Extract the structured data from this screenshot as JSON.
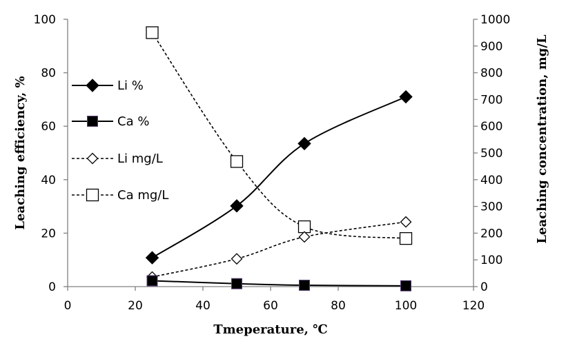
{
  "chart_data": {
    "type": "line",
    "xlabel": "Tmeperature, ℃",
    "ylabel": "Leaching efficiency, %",
    "y2label": "Leaching concentration, mg/L",
    "xlim": [
      0,
      120
    ],
    "ylim": [
      0,
      100
    ],
    "y2lim": [
      0,
      1000
    ],
    "x_ticks": [
      "0",
      "20",
      "40",
      "60",
      "80",
      "100",
      "120"
    ],
    "y_ticks": [
      "0",
      "20",
      "40",
      "60",
      "80",
      "100"
    ],
    "y2_ticks": [
      "0",
      "100",
      "200",
      "300",
      "400",
      "500",
      "600",
      "700",
      "800",
      "900",
      "1000"
    ],
    "grid": false,
    "legend_position": "left",
    "series": [
      {
        "name": "Li %",
        "axis": "left",
        "line": "solid",
        "marker": "diamond-filled",
        "x": [
          25,
          50,
          70,
          100
        ],
        "values": [
          10.8,
          30.2,
          53.5,
          71.0
        ]
      },
      {
        "name": "Ca %",
        "axis": "left",
        "line": "solid",
        "marker": "square-filled",
        "x": [
          25,
          50,
          70,
          100
        ],
        "values": [
          2.2,
          1.1,
          0.5,
          0.3
        ]
      },
      {
        "name": "Li mg/L",
        "axis": "right",
        "line": "dashed",
        "marker": "diamond-open",
        "x": [
          25,
          50,
          70,
          100
        ],
        "values": [
          36,
          104,
          186,
          242
        ]
      },
      {
        "name": "Ca mg/L",
        "axis": "right",
        "line": "dashed",
        "marker": "square-open",
        "x": [
          25,
          50,
          70,
          100
        ],
        "values": [
          950,
          468,
          224,
          180
        ]
      }
    ]
  }
}
